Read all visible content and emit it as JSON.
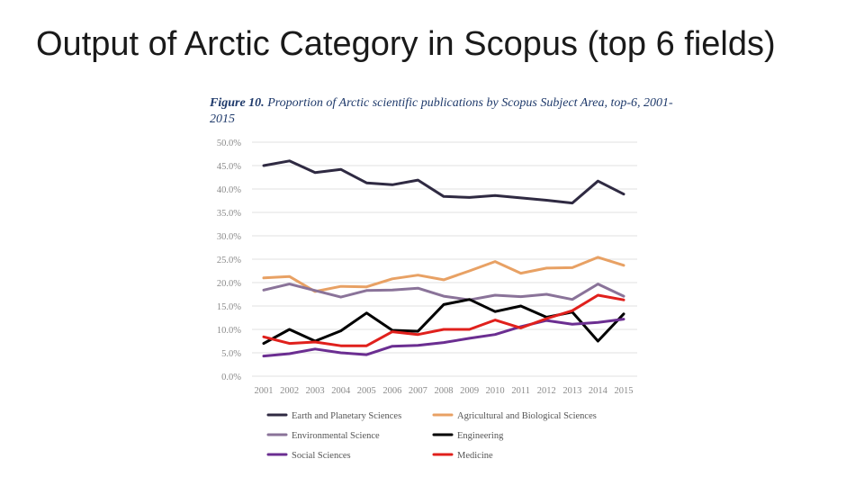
{
  "slide": {
    "title": "Output of Arctic Category in Scopus (top 6 fields)"
  },
  "figure": {
    "label": "Figure 10.",
    "caption": "Proportion of Arctic scientific publications by Scopus Subject Area, top-6, 2001-2015"
  },
  "chart_data": {
    "type": "line",
    "title": "Figure 10. Proportion of Arctic scientific publications by Scopus Subject Area, top-6, 2001-2015",
    "xlabel": "",
    "ylabel": "",
    "x": [
      "2001",
      "2002",
      "2003",
      "2004",
      "2005",
      "2006",
      "2007",
      "2008",
      "2009",
      "2010",
      "2011",
      "2012",
      "2013",
      "2014",
      "2015"
    ],
    "ylim": [
      0,
      50
    ],
    "yticks": [
      "0.0%",
      "5.0%",
      "10.0%",
      "15.0%",
      "20.0%",
      "25.0%",
      "30.0%",
      "35.0%",
      "40.0%",
      "45.0%",
      "50.0%"
    ],
    "grid": true,
    "legend_position": "bottom",
    "series": [
      {
        "name": "Earth and Planetary Sciences",
        "color": "#2f2a42",
        "values": [
          45.0,
          46.0,
          43.5,
          44.2,
          41.3,
          40.9,
          41.9,
          38.4,
          38.2,
          38.6,
          38.1,
          37.6,
          37.0,
          41.7,
          38.9
        ]
      },
      {
        "name": "Agricultural and Biological Sciences",
        "color": "#e8a164",
        "values": [
          21.0,
          21.3,
          18.1,
          19.2,
          19.1,
          20.8,
          21.6,
          20.6,
          22.5,
          24.5,
          22.0,
          23.1,
          23.2,
          25.4,
          23.7
        ]
      },
      {
        "name": "Environmental Science",
        "color": "#8a7399",
        "values": [
          18.4,
          19.7,
          18.3,
          16.9,
          18.3,
          18.4,
          18.8,
          17.1,
          16.3,
          17.3,
          17.0,
          17.5,
          16.4,
          19.7,
          17.1
        ]
      },
      {
        "name": "Engineering",
        "color": "#000000",
        "values": [
          7.0,
          10.0,
          7.5,
          9.7,
          13.5,
          9.8,
          9.6,
          15.3,
          16.4,
          13.8,
          15.0,
          12.6,
          13.7,
          7.5,
          13.3
        ]
      },
      {
        "name": "Social Sciences",
        "color": "#6b2e91",
        "values": [
          4.3,
          4.8,
          5.8,
          5.0,
          4.6,
          6.4,
          6.6,
          7.2,
          8.1,
          8.9,
          10.6,
          11.9,
          11.1,
          11.5,
          12.2
        ]
      },
      {
        "name": "Medicine",
        "color": "#e0201c",
        "values": [
          8.4,
          7.0,
          7.3,
          6.5,
          6.5,
          9.5,
          8.9,
          10.0,
          10.0,
          12.0,
          10.3,
          12.3,
          14.0,
          17.3,
          16.3
        ]
      }
    ]
  }
}
